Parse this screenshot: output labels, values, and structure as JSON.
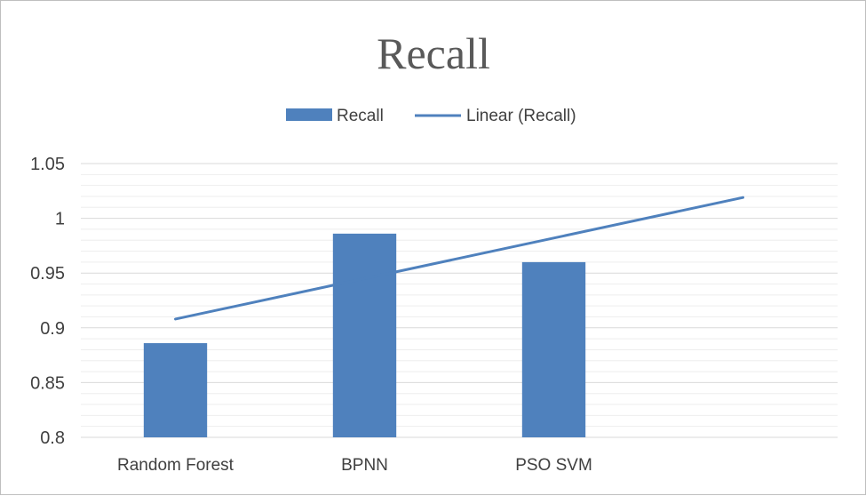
{
  "chart_data": {
    "type": "bar",
    "title": "Recall",
    "categories": [
      "Random Forest",
      "BPNN",
      "PSO SVM"
    ],
    "series": [
      {
        "name": "Recall",
        "values": [
          0.886,
          0.986,
          0.96
        ],
        "color": "#4f81bd"
      }
    ],
    "trendline": {
      "name": "Linear (Recall)",
      "type": "linear",
      "forecast_periods": 1,
      "start": 0.908,
      "end": 1.019,
      "color": "#4f81bd"
    },
    "xlabel": "",
    "ylabel": "",
    "ylim": [
      0.8,
      1.05
    ],
    "yticks": [
      "0.8",
      "0.85",
      "0.9",
      "0.95",
      "1",
      "1.05"
    ],
    "grid": true,
    "legend_position": "top"
  }
}
